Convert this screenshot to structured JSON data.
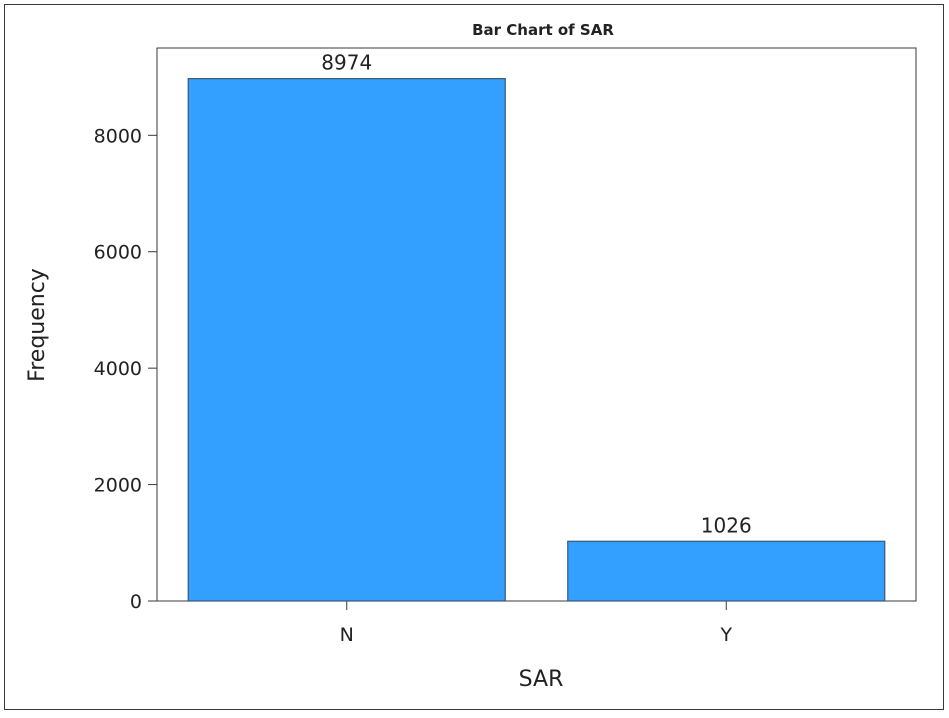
{
  "chart_data": {
    "type": "bar",
    "title": "Bar Chart of SAR",
    "xlabel": "SAR",
    "ylabel": "Frequency",
    "categories": [
      "N",
      "Y"
    ],
    "values": [
      8974,
      1026
    ],
    "data_labels": [
      "8974",
      "1026"
    ],
    "ylim": [
      0,
      9500
    ],
    "yticks": [
      0,
      2000,
      4000,
      6000,
      8000
    ],
    "ytick_labels": [
      "0",
      "2000",
      "4000",
      "6000",
      "8000"
    ],
    "bar_color": "#33A0FF",
    "bar_outline_color": "#3C5870",
    "grid": false,
    "legend": "none"
  }
}
